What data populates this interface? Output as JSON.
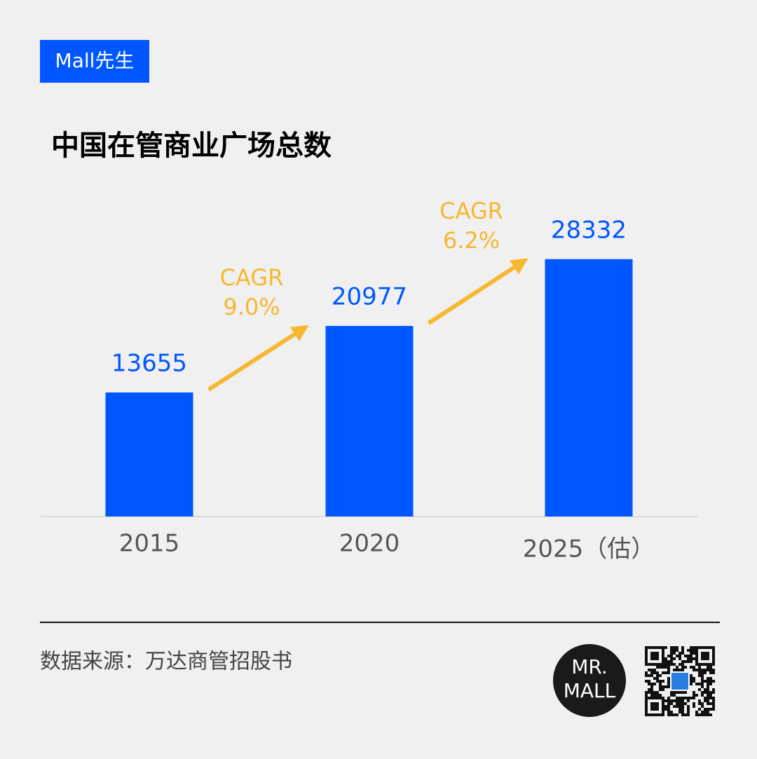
{
  "brand": "Mall先生",
  "chart_data": {
    "type": "bar",
    "title": "中国在管商业广场总数",
    "categories": [
      "2015",
      "2020",
      "2025（估）"
    ],
    "values": [
      13655,
      20977,
      28332
    ],
    "color": "#0057ff",
    "ylim": [
      0,
      36800
    ],
    "annotations": [
      [
        "CAGR",
        "9.0%"
      ],
      [
        "CAGR",
        "6.2%"
      ]
    ],
    "annotation_color": "#f7b731"
  },
  "source": "数据来源：万达商管招股书",
  "logo": [
    "MR.",
    "MALL"
  ]
}
